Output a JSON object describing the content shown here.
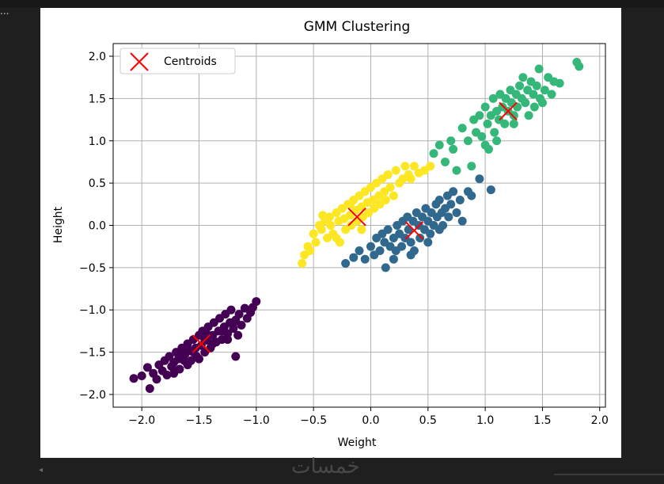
{
  "page": {
    "ellipsis": "...",
    "watermark": "خمسات"
  },
  "chart_data": {
    "type": "scatter",
    "title": "GMM Clustering",
    "xlabel": "Weight",
    "ylabel": "Height",
    "xlim": [
      -2.25,
      2.05
    ],
    "ylim": [
      -2.15,
      2.15
    ],
    "xticks": [
      -2.0,
      -1.5,
      -1.0,
      -0.5,
      0.0,
      0.5,
      1.0,
      1.5,
      2.0
    ],
    "xtick_labels": [
      "−2.0",
      "−1.5",
      "−1.0",
      "−0.5",
      "0.0",
      "0.5",
      "1.0",
      "1.5",
      "2.0"
    ],
    "yticks": [
      -2.0,
      -1.5,
      -1.0,
      -0.5,
      0.0,
      0.5,
      1.0,
      1.5,
      2.0
    ],
    "ytick_labels": [
      "−2.0",
      "−1.5",
      "−1.0",
      "−0.5",
      "0.0",
      "0.5",
      "1.0",
      "1.5",
      "2.0"
    ],
    "grid": true,
    "legend": {
      "position": "top-left",
      "label": "Centroids",
      "marker": "x",
      "color": "#ff0000"
    },
    "series": [
      {
        "color": "#440154",
        "points": [
          [
            -2.07,
            -1.81
          ],
          [
            -2.0,
            -1.78
          ],
          [
            -1.95,
            -1.68
          ],
          [
            -1.93,
            -1.93
          ],
          [
            -1.9,
            -1.75
          ],
          [
            -1.87,
            -1.82
          ],
          [
            -1.85,
            -1.65
          ],
          [
            -1.82,
            -1.72
          ],
          [
            -1.8,
            -1.6
          ],
          [
            -1.78,
            -1.77
          ],
          [
            -1.76,
            -1.55
          ],
          [
            -1.74,
            -1.67
          ],
          [
            -1.72,
            -1.62
          ],
          [
            -1.7,
            -1.5
          ],
          [
            -1.68,
            -1.58
          ],
          [
            -1.67,
            -1.7
          ],
          [
            -1.65,
            -1.45
          ],
          [
            -1.63,
            -1.6
          ],
          [
            -1.62,
            -1.52
          ],
          [
            -1.6,
            -1.4
          ],
          [
            -1.58,
            -1.48
          ],
          [
            -1.57,
            -1.6
          ],
          [
            -1.55,
            -1.35
          ],
          [
            -1.53,
            -1.45
          ],
          [
            -1.52,
            -1.55
          ],
          [
            -1.5,
            -1.3
          ],
          [
            -1.48,
            -1.42
          ],
          [
            -1.47,
            -1.25
          ],
          [
            -1.45,
            -1.5
          ],
          [
            -1.43,
            -1.36
          ],
          [
            -1.42,
            -1.2
          ],
          [
            -1.4,
            -1.45
          ],
          [
            -1.38,
            -1.3
          ],
          [
            -1.37,
            -1.15
          ],
          [
            -1.35,
            -1.38
          ],
          [
            -1.33,
            -1.25
          ],
          [
            -1.32,
            -1.1
          ],
          [
            -1.3,
            -1.35
          ],
          [
            -1.28,
            -1.2
          ],
          [
            -1.27,
            -1.05
          ],
          [
            -1.25,
            -1.28
          ],
          [
            -1.23,
            -1.15
          ],
          [
            -1.22,
            -1.0
          ],
          [
            -1.2,
            -1.22
          ],
          [
            -1.18,
            -1.12
          ],
          [
            -1.16,
            -1.3
          ],
          [
            -1.15,
            -1.05
          ],
          [
            -1.13,
            -1.18
          ],
          [
            -1.1,
            -0.98
          ],
          [
            -1.08,
            -1.1
          ],
          [
            -1.05,
            -1.03
          ],
          [
            -1.03,
            -0.97
          ],
          [
            -1.0,
            -0.9
          ],
          [
            -1.55,
            -1.5
          ],
          [
            -1.6,
            -1.65
          ],
          [
            -1.45,
            -1.35
          ],
          [
            -1.38,
            -1.4
          ],
          [
            -1.3,
            -1.25
          ],
          [
            -1.2,
            -1.15
          ],
          [
            -1.25,
            -1.35
          ],
          [
            -1.18,
            -1.55
          ],
          [
            -1.67,
            -1.5
          ],
          [
            -1.72,
            -1.75
          ],
          [
            -1.5,
            -1.58
          ],
          [
            -1.42,
            -1.3
          ]
        ]
      },
      {
        "color": "#31688e",
        "points": [
          [
            -0.22,
            -0.45
          ],
          [
            -0.15,
            -0.38
          ],
          [
            -0.1,
            -0.3
          ],
          [
            -0.05,
            -0.4
          ],
          [
            0.0,
            -0.25
          ],
          [
            0.03,
            -0.35
          ],
          [
            0.05,
            -0.15
          ],
          [
            0.08,
            -0.3
          ],
          [
            0.1,
            -0.1
          ],
          [
            0.12,
            -0.2
          ],
          [
            0.13,
            -0.5
          ],
          [
            0.15,
            -0.05
          ],
          [
            0.17,
            -0.25
          ],
          [
            0.2,
            -0.15
          ],
          [
            0.22,
            -0.3
          ],
          [
            0.23,
            0.0
          ],
          [
            0.25,
            -0.1
          ],
          [
            0.27,
            -0.25
          ],
          [
            0.28,
            0.05
          ],
          [
            0.3,
            -0.15
          ],
          [
            0.32,
            0.1
          ],
          [
            0.33,
            -0.05
          ],
          [
            0.35,
            -0.2
          ],
          [
            0.37,
            0.05
          ],
          [
            0.38,
            -0.3
          ],
          [
            0.4,
            0.15
          ],
          [
            0.42,
            0.0
          ],
          [
            0.43,
            -0.15
          ],
          [
            0.45,
            0.1
          ],
          [
            0.47,
            -0.05
          ],
          [
            0.48,
            0.2
          ],
          [
            0.5,
            0.05
          ],
          [
            0.52,
            -0.1
          ],
          [
            0.53,
            0.15
          ],
          [
            0.55,
            0.0
          ],
          [
            0.57,
            0.25
          ],
          [
            0.58,
            0.1
          ],
          [
            0.6,
            0.3
          ],
          [
            0.62,
            0.15
          ],
          [
            0.63,
            0.0
          ],
          [
            0.65,
            0.2
          ],
          [
            0.67,
            0.35
          ],
          [
            0.68,
            0.1
          ],
          [
            0.7,
            0.25
          ],
          [
            0.72,
            0.4
          ],
          [
            0.75,
            0.15
          ],
          [
            0.78,
            0.3
          ],
          [
            0.8,
            0.05
          ],
          [
            0.85,
            0.4
          ],
          [
            0.88,
            0.35
          ],
          [
            0.95,
            0.55
          ],
          [
            1.05,
            0.42
          ],
          [
            0.35,
            -0.35
          ],
          [
            0.2,
            -0.4
          ],
          [
            0.5,
            -0.2
          ],
          [
            0.6,
            -0.05
          ]
        ]
      },
      {
        "color": "#35b779",
        "points": [
          [
            0.55,
            0.85
          ],
          [
            0.6,
            0.95
          ],
          [
            0.65,
            0.75
          ],
          [
            0.7,
            1.0
          ],
          [
            0.72,
            0.9
          ],
          [
            0.8,
            1.15
          ],
          [
            0.85,
            1.0
          ],
          [
            0.88,
            0.7
          ],
          [
            0.9,
            1.25
          ],
          [
            0.92,
            1.1
          ],
          [
            0.95,
            1.3
          ],
          [
            0.97,
            1.05
          ],
          [
            1.0,
            1.4
          ],
          [
            1.02,
            1.2
          ],
          [
            1.03,
            0.9
          ],
          [
            1.05,
            1.3
          ],
          [
            1.07,
            1.5
          ],
          [
            1.08,
            1.1
          ],
          [
            1.1,
            1.35
          ],
          [
            1.12,
            1.25
          ],
          [
            1.13,
            1.55
          ],
          [
            1.15,
            1.4
          ],
          [
            1.17,
            1.2
          ],
          [
            1.18,
            1.5
          ],
          [
            1.2,
            1.35
          ],
          [
            1.22,
            1.6
          ],
          [
            1.23,
            1.45
          ],
          [
            1.25,
            1.3
          ],
          [
            1.27,
            1.55
          ],
          [
            1.28,
            1.4
          ],
          [
            1.3,
            1.65
          ],
          [
            1.32,
            1.5
          ],
          [
            1.33,
            1.75
          ],
          [
            1.35,
            1.45
          ],
          [
            1.37,
            1.6
          ],
          [
            1.38,
            1.3
          ],
          [
            1.4,
            1.7
          ],
          [
            1.42,
            1.55
          ],
          [
            1.43,
            1.4
          ],
          [
            1.45,
            1.65
          ],
          [
            1.47,
            1.85
          ],
          [
            1.48,
            1.5
          ],
          [
            1.5,
            1.45
          ],
          [
            1.52,
            1.6
          ],
          [
            1.55,
            1.75
          ],
          [
            1.58,
            1.55
          ],
          [
            1.6,
            1.7
          ],
          [
            1.65,
            1.68
          ],
          [
            1.8,
            1.93
          ],
          [
            1.82,
            1.88
          ],
          [
            0.75,
            0.65
          ],
          [
            1.0,
            0.95
          ],
          [
            1.1,
            1.0
          ],
          [
            1.25,
            1.2
          ]
        ]
      },
      {
        "color": "#fde725",
        "points": [
          [
            -0.6,
            -0.45
          ],
          [
            -0.58,
            -0.35
          ],
          [
            -0.55,
            -0.25
          ],
          [
            -0.53,
            -0.3
          ],
          [
            -0.5,
            -0.1
          ],
          [
            -0.48,
            -0.2
          ],
          [
            -0.45,
            0.0
          ],
          [
            -0.43,
            -0.05
          ],
          [
            -0.4,
            0.05
          ],
          [
            -0.38,
            -0.15
          ],
          [
            -0.36,
            0.1
          ],
          [
            -0.35,
            0.0
          ],
          [
            -0.33,
            -0.1
          ],
          [
            -0.3,
            0.15
          ],
          [
            -0.28,
            0.05
          ],
          [
            -0.27,
            -0.2
          ],
          [
            -0.25,
            0.2
          ],
          [
            -0.23,
            0.08
          ],
          [
            -0.22,
            -0.05
          ],
          [
            -0.2,
            0.25
          ],
          [
            -0.18,
            0.12
          ],
          [
            -0.17,
            0.0
          ],
          [
            -0.15,
            0.3
          ],
          [
            -0.13,
            0.18
          ],
          [
            -0.12,
            0.05
          ],
          [
            -0.1,
            0.35
          ],
          [
            -0.08,
            0.22
          ],
          [
            -0.07,
            0.1
          ],
          [
            -0.05,
            0.4
          ],
          [
            -0.03,
            0.27
          ],
          [
            -0.02,
            0.15
          ],
          [
            0.0,
            0.45
          ],
          [
            0.02,
            0.3
          ],
          [
            0.03,
            0.2
          ],
          [
            0.05,
            0.5
          ],
          [
            0.07,
            0.35
          ],
          [
            0.08,
            0.25
          ],
          [
            0.1,
            0.55
          ],
          [
            0.12,
            0.4
          ],
          [
            0.13,
            0.3
          ],
          [
            0.15,
            0.6
          ],
          [
            0.17,
            0.45
          ],
          [
            0.2,
            0.35
          ],
          [
            0.22,
            0.65
          ],
          [
            0.25,
            0.5
          ],
          [
            0.28,
            0.55
          ],
          [
            0.3,
            0.7
          ],
          [
            0.33,
            0.6
          ],
          [
            0.35,
            0.55
          ],
          [
            0.38,
            0.7
          ],
          [
            0.42,
            0.62
          ],
          [
            0.47,
            0.65
          ],
          [
            0.52,
            0.7
          ],
          [
            -0.42,
            0.12
          ],
          [
            -0.3,
            -0.15
          ],
          [
            -0.08,
            -0.05
          ],
          [
            -0.18,
            0.25
          ]
        ]
      }
    ],
    "centroids": [
      [
        -1.48,
        -1.4
      ],
      [
        0.38,
        -0.06
      ],
      [
        -0.12,
        0.1
      ],
      [
        1.2,
        1.35
      ]
    ]
  }
}
